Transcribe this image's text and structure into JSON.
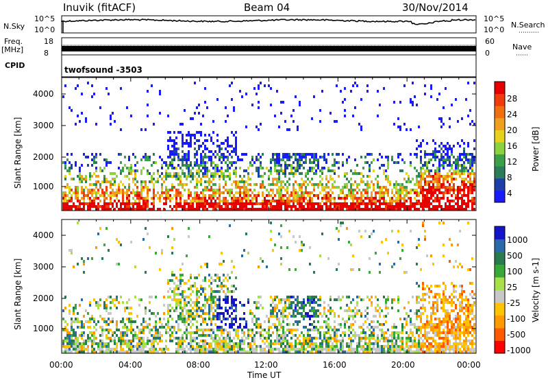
{
  "header": {
    "site": "Inuvik (fitACF)",
    "beam": "Beam 04",
    "date": "30/Nov/2014"
  },
  "strips": {
    "nsky_label": "N.Sky",
    "nsky_ticks": [
      "10^5",
      "10^0"
    ],
    "nsearch_label": "N.Search",
    "nsearch_ticks": [
      "10^5",
      "10^0"
    ],
    "freq_label": "Freq.",
    "freq_unit": "[MHz]",
    "freq_ticks": [
      "18",
      "8"
    ],
    "nave_label": "Nave",
    "nave_ticks": [
      "60",
      "0"
    ],
    "cpid_label": "CPID",
    "cpid_value": "twofsound  -3503"
  },
  "colors": {
    "power": [
      "#1a1aff",
      "#1f3fa8",
      "#2e7d5a",
      "#3aa04a",
      "#8cd23c",
      "#e8d21e",
      "#f0a020",
      "#f07010",
      "#f03c0a",
      "#e60000"
    ],
    "velocity": [
      "#ff0000",
      "#ff5a00",
      "#ff9a00",
      "#ffc400",
      "#c8c8c8",
      "#a8e04a",
      "#38a838",
      "#2a7a50",
      "#2a6aa8",
      "#1414c8"
    ]
  },
  "chart_data": [
    {
      "type": "heatmap",
      "name": "power",
      "ylabel": "Slant Range [km]",
      "yticks": [
        "4000",
        "3000",
        "2000",
        "1000"
      ],
      "ylim": [
        180,
        4500
      ],
      "colorbar_label": "Power [dB]",
      "colorbar_ticks": [
        "28",
        "24",
        "20",
        "16",
        "12",
        "8",
        "4"
      ]
    },
    {
      "type": "heatmap",
      "name": "velocity",
      "ylabel": "Slant Range [km]",
      "yticks": [
        "4000",
        "3000",
        "2000",
        "1000"
      ],
      "ylim": [
        180,
        4500
      ],
      "colorbar_label": "Velocity [m s-1]",
      "colorbar_ticks": [
        "1000",
        "500",
        "100",
        "25",
        "-25",
        "-100",
        "-500",
        "-1000"
      ]
    }
  ],
  "xaxis": {
    "ticks": [
      "00:00",
      "04:00",
      "08:00",
      "12:00",
      "16:00",
      "20:00",
      "00:00"
    ],
    "label": "Time UT"
  }
}
